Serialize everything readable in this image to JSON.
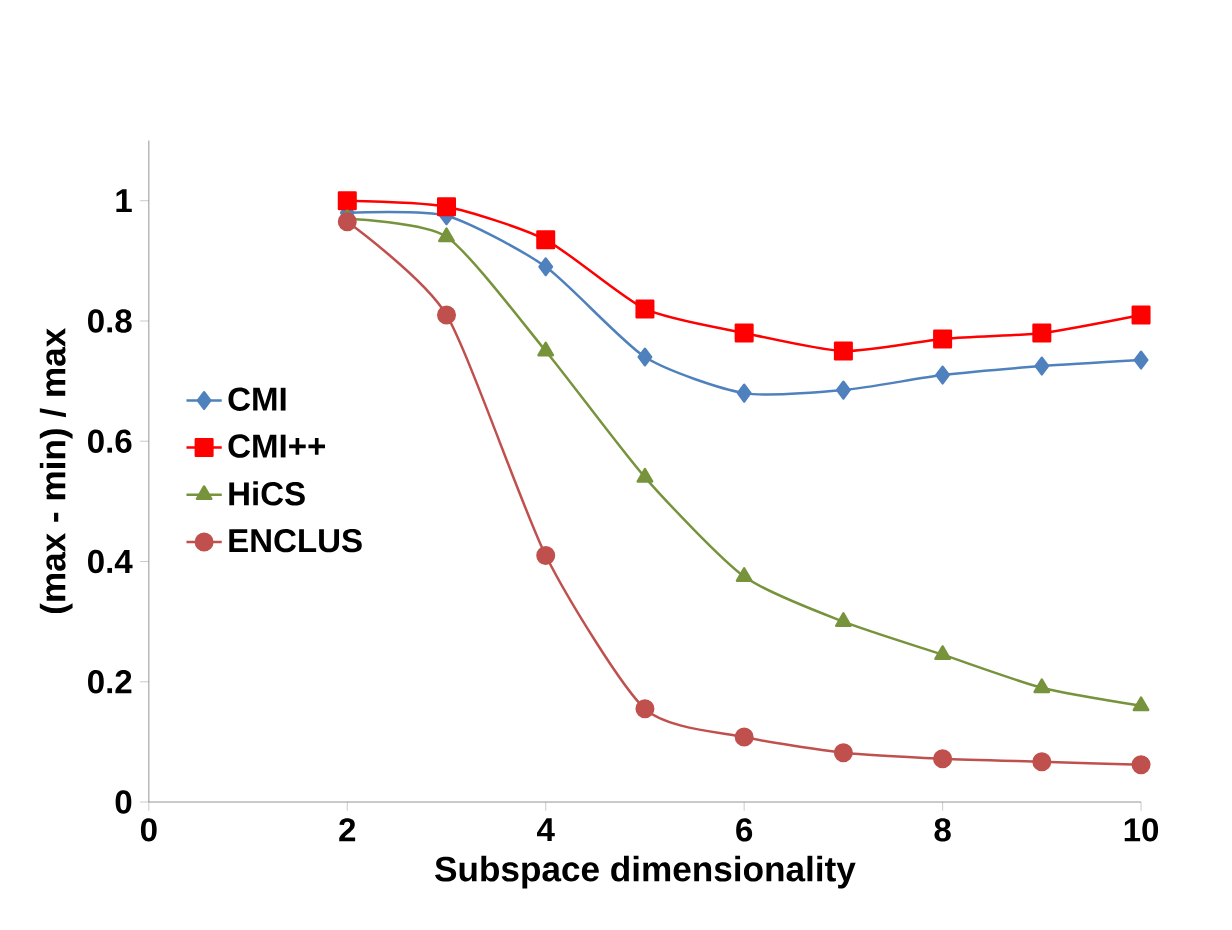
{
  "chart_data": {
    "type": "line",
    "xlabel": "Subspace dimensionality",
    "ylabel": "(max - min) / max",
    "x": [
      2,
      3,
      4,
      5,
      6,
      7,
      8,
      9,
      10
    ],
    "series": [
      {
        "name": "CMI",
        "color": "#4f81bd",
        "marker": "diamond",
        "values": [
          0.98,
          0.975,
          0.89,
          0.74,
          0.68,
          0.685,
          0.71,
          0.725,
          0.735
        ]
      },
      {
        "name": "CMI++",
        "color": "#ff0000",
        "marker": "square",
        "values": [
          1.0,
          0.99,
          0.935,
          0.82,
          0.78,
          0.75,
          0.77,
          0.78,
          0.81
        ]
      },
      {
        "name": "HiCS",
        "color": "#77933c",
        "marker": "triangle",
        "values": [
          0.97,
          0.94,
          0.75,
          0.54,
          0.375,
          0.3,
          0.245,
          0.19,
          0.16
        ]
      },
      {
        "name": "ENCLUS",
        "color": "#c0504d",
        "marker": "circle",
        "values": [
          0.965,
          0.81,
          0.41,
          0.155,
          0.108,
          0.082,
          0.072,
          0.067,
          0.062
        ]
      }
    ],
    "xlim": [
      0,
      10
    ],
    "xticks": [
      0,
      2,
      4,
      6,
      8,
      10
    ],
    "ylim": [
      0,
      1.1
    ],
    "yticks": [
      0,
      0.2,
      0.4,
      0.6,
      0.8,
      1
    ],
    "grid": false,
    "legend": "left"
  }
}
